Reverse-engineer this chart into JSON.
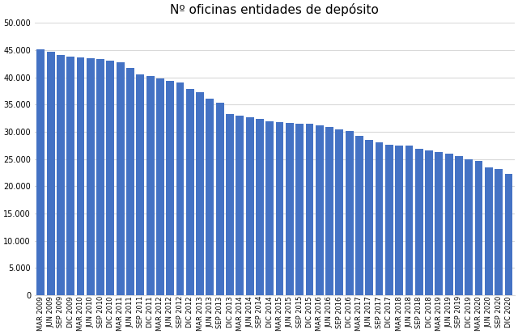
{
  "title": "Nº oficinas entidades de depósito",
  "background_color": "#ffffff",
  "plot_bg_color": "#ffffff",
  "bar_color": "#4472c4",
  "categories": [
    "MAR 2009",
    "JUN 2009",
    "SEP 2009",
    "DIC 2009",
    "MAR 2010",
    "JUN 2010",
    "SEP 2010",
    "DIC 2010",
    "MAR 2011",
    "JUN 2011",
    "SEP 2011",
    "DIC 2011",
    "MAR 2012",
    "JUN 2012",
    "SEP 2012",
    "DIC 2012",
    "MAR 2013",
    "JUN 2013",
    "SEP 2013",
    "DIC 2013",
    "MAR 2014",
    "JUN 2014",
    "SEP 2014",
    "DIC 2014",
    "MAR 2015",
    "JUN 2015",
    "SEP 2015",
    "DIC 2015",
    "MAR 2016",
    "JUN 2016",
    "SEP 2016",
    "DIC 2016",
    "MAR 2017",
    "JUN 2017",
    "SEP 2017",
    "DIC 2017",
    "MAR 2018",
    "JUN 2018",
    "SEP 2018",
    "DIC 2018",
    "MAR 2019",
    "JUN 2019",
    "SEP 2019",
    "DIC 2019",
    "MAR 2020",
    "JUN 2020",
    "SEP 2020",
    "DIC 2020"
  ],
  "values": [
    45100,
    44700,
    44100,
    43800,
    43600,
    43500,
    43300,
    43000,
    42800,
    41700,
    40500,
    40200,
    39800,
    39400,
    39100,
    37800,
    37300,
    36100,
    35300,
    33200,
    33000,
    32600,
    32300,
    31900,
    31800,
    31600,
    31400,
    31500,
    31100,
    30900,
    30400,
    30100,
    29300,
    28500,
    28100,
    27600,
    27500,
    27400,
    26900,
    26600,
    26300,
    26000,
    25600,
    24900,
    24700,
    23500,
    23100,
    22300
  ],
  "ylim": [
    0,
    50000
  ],
  "yticks": [
    0,
    5000,
    10000,
    15000,
    20000,
    25000,
    30000,
    35000,
    40000,
    45000,
    50000
  ],
  "grid_color": "#d9d9d9",
  "title_fontsize": 11,
  "tick_fontsize": 6,
  "ytick_fontsize": 7
}
